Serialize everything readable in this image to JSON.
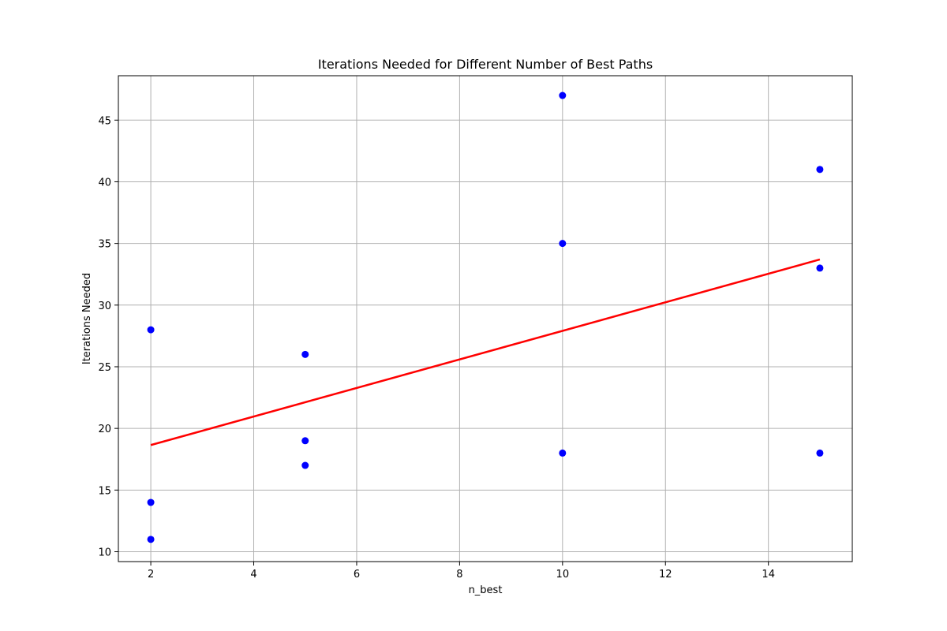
{
  "chart_data": {
    "type": "scatter",
    "title": "Iterations Needed for Different Number of Best Paths",
    "xlabel": "n_best",
    "ylabel": "Iterations Needed",
    "xlim": [
      1.37,
      15.63
    ],
    "ylim": [
      9.2,
      48.6
    ],
    "xticks": [
      2,
      4,
      6,
      8,
      10,
      12,
      14
    ],
    "yticks": [
      10,
      15,
      20,
      25,
      30,
      35,
      40,
      45
    ],
    "grid": true,
    "series": [
      {
        "kind": "points",
        "color": "#0000ff",
        "points": [
          {
            "x": 2,
            "y": 11
          },
          {
            "x": 2,
            "y": 14
          },
          {
            "x": 2,
            "y": 28
          },
          {
            "x": 5,
            "y": 17
          },
          {
            "x": 5,
            "y": 19
          },
          {
            "x": 5,
            "y": 26
          },
          {
            "x": 10,
            "y": 18
          },
          {
            "x": 10,
            "y": 35
          },
          {
            "x": 10,
            "y": 47
          },
          {
            "x": 15,
            "y": 18
          },
          {
            "x": 15,
            "y": 33
          },
          {
            "x": 15,
            "y": 41
          }
        ]
      },
      {
        "kind": "line",
        "color": "#ff0000",
        "points": [
          {
            "x": 2,
            "y": 18.65
          },
          {
            "x": 15,
            "y": 33.7
          }
        ]
      }
    ]
  }
}
